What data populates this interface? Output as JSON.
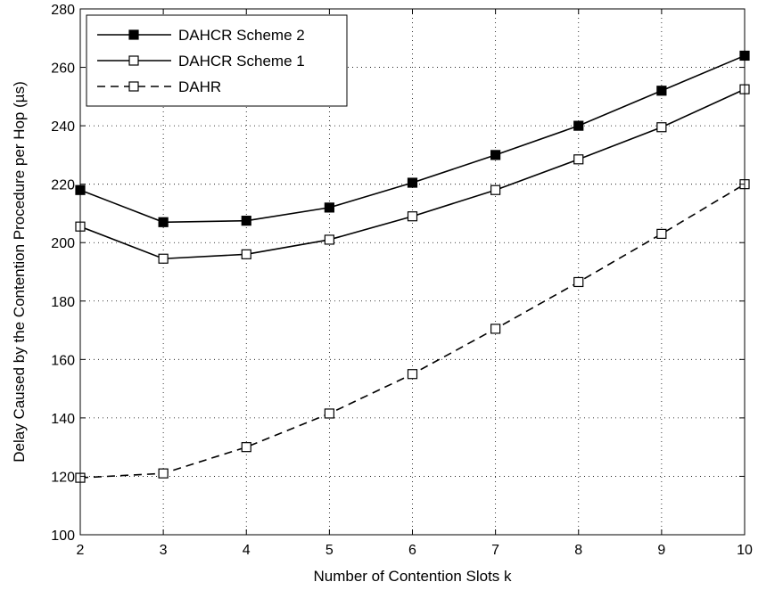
{
  "chart_data": {
    "type": "line",
    "title": "",
    "xlabel": "Number of Contention Slots k",
    "ylabel": "Delay Caused by the Contention Procedure per Hop (µs)",
    "xlim": [
      2,
      10
    ],
    "ylim": [
      100,
      280
    ],
    "x_ticks": [
      2,
      3,
      4,
      5,
      6,
      7,
      8,
      9,
      10
    ],
    "y_ticks": [
      100,
      120,
      140,
      160,
      180,
      200,
      220,
      240,
      260,
      280
    ],
    "grid": true,
    "legend_position": "top-left",
    "x": [
      2,
      3,
      4,
      5,
      6,
      7,
      8,
      9,
      10
    ],
    "series": [
      {
        "name": "DAHCR Scheme 2",
        "values": [
          218,
          207,
          207.5,
          212,
          220.5,
          230,
          240,
          252,
          264
        ],
        "line_style": "solid",
        "marker": "filled-square",
        "color": "#000000"
      },
      {
        "name": "DAHCR Scheme 1",
        "values": [
          205.5,
          194.5,
          196,
          201,
          209,
          218,
          228.5,
          239.5,
          252.5
        ],
        "line_style": "solid",
        "marker": "open-square",
        "color": "#000000"
      },
      {
        "name": "DAHR",
        "values": [
          119.5,
          121,
          130,
          141.5,
          155,
          170.5,
          186.5,
          203,
          220
        ],
        "line_style": "dashed",
        "marker": "open-square",
        "color": "#000000"
      }
    ]
  }
}
